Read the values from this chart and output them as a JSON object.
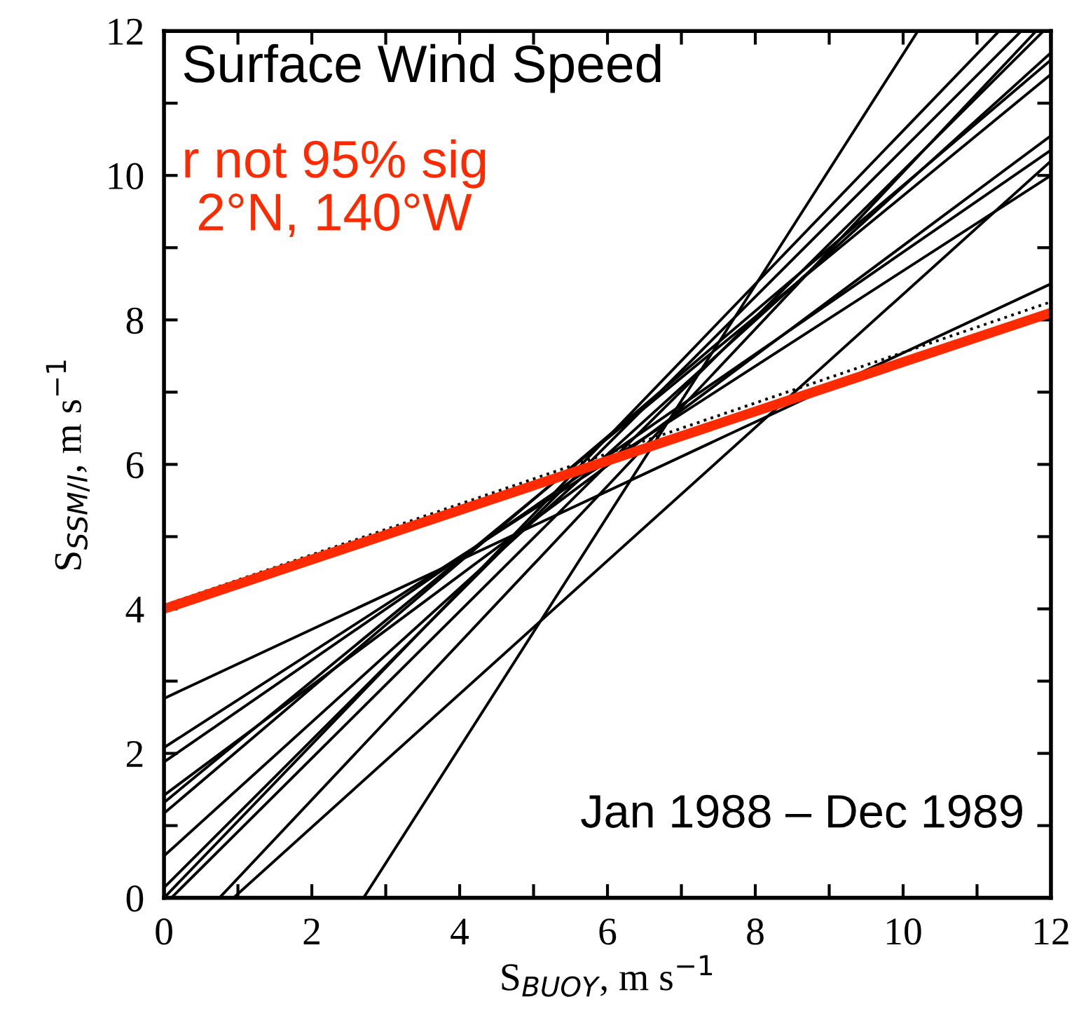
{
  "chart_data": {
    "type": "line",
    "title": "Surface Wind Speed",
    "subtitle": "r not 95% sig\n 2°N, 140°W",
    "annotations": [
      "Jan 1988 – Dec 1989"
    ],
    "xlabel": "S$_{BUOY}$, m s$^{−1}$",
    "ylabel": "S$_{SSM/I}$, m s$^{−1}$",
    "xlim": [
      0,
      12
    ],
    "ylim": [
      0,
      12
    ],
    "xticks": [
      0,
      {
        "value": 1,
        "label": null
      },
      2,
      {
        "value": 3,
        "label": null
      },
      4,
      {
        "value": 5,
        "label": null
      },
      6,
      {
        "value": 7,
        "label": null
      },
      8,
      {
        "value": 9,
        "label": null
      },
      10,
      {
        "value": 11,
        "label": null
      },
      12
    ],
    "yticks": [
      0,
      {
        "value": 1,
        "label": null
      },
      2,
      {
        "value": 3,
        "label": null
      },
      4,
      {
        "value": 5,
        "label": null
      },
      6,
      {
        "value": 7,
        "label": null
      },
      8,
      {
        "value": 9,
        "label": null
      },
      10,
      {
        "value": 11,
        "label": null
      },
      12
    ],
    "grid": false,
    "legend": false,
    "marker": "none",
    "series": [
      {
        "color": "#000000",
        "x": [
          0,
          12
        ],
        "values": [
          2.76,
          8.5
        ]
      },
      {
        "color": "#000000",
        "x": [
          0,
          12
        ],
        "values": [
          2.08,
          10.0
        ]
      },
      {
        "color": "#000000",
        "x": [
          0,
          12
        ],
        "values": [
          1.88,
          10.35
        ]
      },
      {
        "color": "#000000",
        "x": [
          0,
          12
        ],
        "values": [
          1.42,
          10.55
        ]
      },
      {
        "color": "#000000",
        "x": [
          0,
          12
        ],
        "values": [
          1.32,
          11.4
        ]
      },
      {
        "color": "#000000",
        "x": [
          0,
          12
        ],
        "values": [
          1.17,
          11.6
        ]
      },
      {
        "color": "#000000",
        "x": [
          0,
          12
        ],
        "values": [
          0.58,
          11.7
        ]
      },
      {
        "color": "#000000",
        "x": [
          0,
          11.6
        ],
        "values": [
          0.14,
          12
        ]
      },
      {
        "color": "#000000",
        "x": [
          0,
          11.3
        ],
        "values": [
          0,
          12
        ]
      },
      {
        "color": "#000000",
        "x": [
          0.1,
          11.9
        ],
        "values": [
          0,
          12
        ]
      },
      {
        "color": "#000000",
        "x": [
          0.75,
          11.8
        ],
        "values": [
          0,
          12
        ]
      },
      {
        "color": "#000000",
        "x": [
          0.94,
          12
        ],
        "values": [
          0,
          10.2
        ]
      },
      {
        "color": "#000000",
        "x": [
          2.7,
          10.2
        ],
        "values": [
          0,
          12
        ]
      },
      {
        "color": "#000000",
        "x": [
          0,
          12
        ],
        "values": [
          4.05,
          8.25
        ],
        "line_style": "dotted"
      },
      {
        "color": "#ff2a00",
        "x": [
          0,
          12
        ],
        "values": [
          4.0,
          8.1
        ]
      }
    ]
  }
}
